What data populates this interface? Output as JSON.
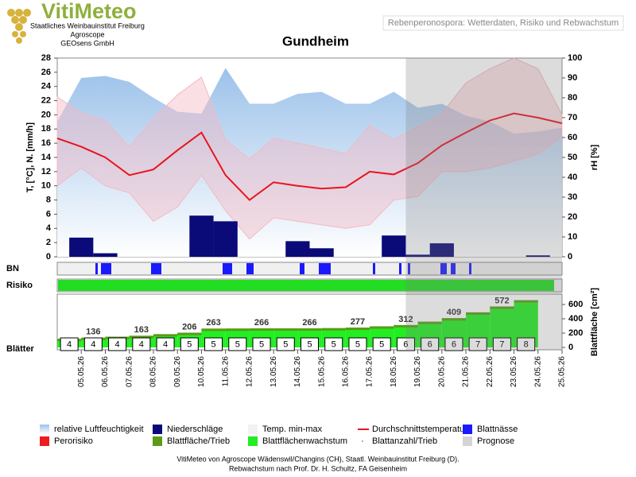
{
  "header": {
    "logo": "VitiMeteo",
    "lines": [
      "Staatliches Weinbauinstitut Freiburg",
      "Agroscope",
      "GEOsens GmbH"
    ],
    "subtitle": "Rebenperonospora: Wetterdaten, Risiko und Rebwachstum"
  },
  "chart_data": {
    "type": "combo",
    "title": "Gundheim",
    "categories": [
      null,
      "05.05.26",
      "06.05.26",
      "07.05.26",
      "08.05.26",
      "09.05.26",
      "10.05.26",
      "11.05.26",
      "12.05.26",
      "13.05.26",
      "14.05.26",
      "15.05.26",
      "16.05.26",
      "17.05.26",
      "18.05.26",
      "19.05.26",
      "20.05.26",
      "21.05.26",
      "22.05.26",
      "23.05.26",
      "24.05.26",
      "25.05.26"
    ],
    "ylabel": "T, [°C], N. [mm/h]",
    "ylim": [
      0,
      28
    ],
    "yticks": [
      0,
      2,
      4,
      6,
      8,
      10,
      12,
      14,
      16,
      18,
      20,
      22,
      24,
      26,
      28
    ],
    "y2label": "rH [%]",
    "y2lim": [
      0,
      100
    ],
    "y2ticks": [
      0,
      10,
      20,
      30,
      40,
      50,
      60,
      70,
      80,
      90,
      100
    ],
    "series": [
      {
        "name": "relative Luftfeuchtigkeit",
        "kind": "area",
        "axis": "y2",
        "color": "#9cc2ea",
        "values": [
          68,
          90,
          91,
          88,
          80,
          73,
          72,
          95,
          77,
          77,
          82,
          83,
          77,
          77,
          83,
          75,
          77,
          71,
          68,
          62,
          63,
          65
        ]
      },
      {
        "name": "Niederschläge",
        "kind": "bar",
        "color": "#0a0a78",
        "values": [
          0,
          2.7,
          0.5,
          0,
          0,
          0,
          5.8,
          5,
          0,
          0,
          2.2,
          1.2,
          0,
          0,
          3,
          0.3,
          1.9,
          0,
          0,
          0,
          0.2,
          0
        ]
      },
      {
        "name": "Temp. min-max",
        "kind": "band",
        "color": "#f4b8c4",
        "high": [
          22.5,
          20.3,
          19.2,
          15.5,
          19.5,
          22.8,
          25.3,
          16.5,
          13.8,
          16.7,
          16,
          15.3,
          14.5,
          18.5,
          16.5,
          18.3,
          20.2,
          24.5,
          26.5,
          28,
          26.5,
          20
        ],
        "low": [
          10,
          12.5,
          10,
          9,
          5,
          7,
          11.5,
          6.5,
          2.5,
          5.5,
          5,
          4.5,
          4,
          4.5,
          8,
          8.5,
          12,
          12,
          12.5,
          13.5,
          14.5,
          17
        ]
      },
      {
        "name": "Durchschnittstemperatur",
        "kind": "line",
        "color": "#e8141e",
        "values": [
          16.7,
          15.5,
          14,
          11.5,
          12.3,
          15,
          17.5,
          11.5,
          8,
          10.5,
          10,
          9.6,
          9.8,
          12,
          11.6,
          13.2,
          15.7,
          17.5,
          19.2,
          20.2,
          19.6,
          18.8
        ]
      }
    ],
    "wetness": {
      "label": "BN",
      "name": "Blattnässe",
      "color": "#1a1aff"
    },
    "risk": {
      "label": "Risiko",
      "name": "Perorisiko",
      "color": "#ee1c1c",
      "bar_color": "#22dd22"
    },
    "leaf": {
      "label": "Blätter",
      "ylabel": "Blattfläche [cm²]",
      "ylim": [
        0,
        700
      ],
      "yticks": [
        0,
        200,
        400,
        600
      ],
      "area": {
        "name": "Blattfläche/Trieb",
        "color": "#5c9a18",
        "values": [
          120,
          136,
          150,
          163,
          185,
          206,
          263,
          264,
          266,
          266,
          266,
          270,
          277,
          295,
          312,
          360,
          409,
          490,
          572,
          660
        ],
        "value_labels": [
          null,
          "136",
          null,
          "163",
          null,
          "206",
          "263",
          null,
          "266",
          null,
          "266",
          null,
          "277",
          null,
          "312",
          null,
          "409",
          null,
          "572",
          null
        ]
      },
      "growth": {
        "name": "Blattflächenwachstum",
        "color": "#22ee22"
      },
      "count": {
        "name": "Blattanzahl/Trieb",
        "values": [
          4,
          4,
          4,
          4,
          4,
          5,
          5,
          5,
          5,
          5,
          5,
          5,
          5,
          5,
          6,
          6,
          6,
          7,
          7,
          8
        ]
      }
    },
    "forecast": {
      "name": "Prognose",
      "color": "#d4d4d4"
    }
  },
  "footer": [
    "VitiMeteo von Agroscope Wädenswil/Changins (CH), Staatl. Weinbauinstitut Freiburg (D).",
    "Rebwachstum nach Prof. Dr. H. Schultz, FA Geisenheim"
  ]
}
